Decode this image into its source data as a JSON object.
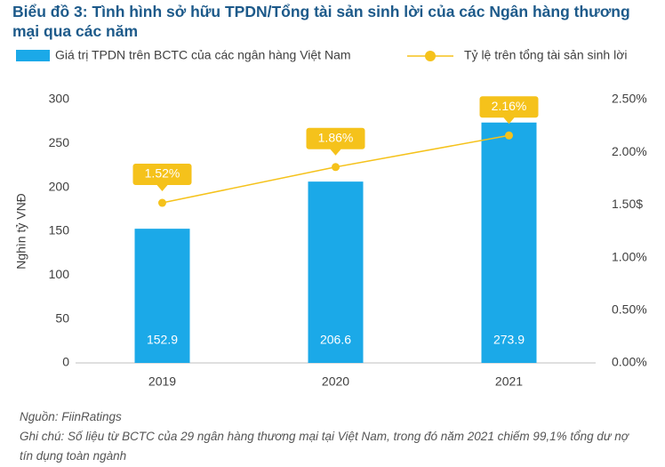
{
  "chart_data": {
    "type": "bar-line",
    "title": "Biểu đồ 3: Tình hình sở hữu TPDN/Tổng tài sản sinh lời của các Ngân hàng thương mại qua các năm",
    "y_label": "Nghìn tỷ VNĐ",
    "categories": [
      "2019",
      "2020",
      "2021"
    ],
    "series": [
      {
        "name": "Giá trị TPDN trên BCTC của các ngân hàng Việt Nam",
        "type": "bar",
        "color": "#1ba9e8",
        "values": [
          152.9,
          206.6,
          273.9
        ]
      },
      {
        "name": "Tỷ lệ trên tổng tài sản sinh lời",
        "type": "line",
        "color": "#f5c21b",
        "axis": "y2",
        "values": [
          1.52,
          1.86,
          2.16
        ],
        "value_labels": [
          "1.52%",
          "1.86%",
          "2.16%"
        ]
      }
    ],
    "ylim": [
      0,
      300
    ],
    "yticks": [
      0,
      50,
      100,
      150,
      200,
      250,
      300
    ],
    "y2lim": [
      0,
      2.5
    ],
    "y2ticks": [
      {
        "value": 0,
        "label": "0.00%"
      },
      {
        "value": 0.5,
        "label": "0.50%"
      },
      {
        "value": 1,
        "label": "1.00%"
      },
      {
        "value": 1.5,
        "label": "1.50$"
      },
      {
        "value": 2,
        "label": "2.00%"
      },
      {
        "value": 2.5,
        "label": "2.50%"
      }
    ],
    "source": "Nguồn: FiinRatings",
    "note": "Ghi chú: Số liệu từ BCTC của 29 ngân hàng thương mại tại Việt Nam, trong đó năm 2021 chiếm 99,1% tổng dư nợ tín dụng toàn ngành"
  }
}
